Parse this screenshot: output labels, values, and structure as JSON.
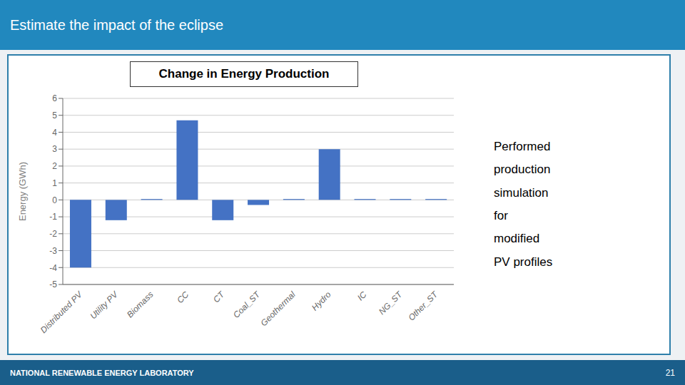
{
  "chart_data": {
    "type": "bar",
    "title": "Change in Energy Production",
    "categories": [
      "Distributed PV",
      "Utility PV",
      "Biomass",
      "CC",
      "CT",
      "Coal_ST",
      "Geothermal",
      "Hydro",
      "IC",
      "NG_ST",
      "Other_ST"
    ],
    "values": [
      -4.0,
      -1.2,
      0.05,
      4.7,
      -1.2,
      -0.3,
      0.05,
      3.0,
      0.05,
      0.05,
      0.05
    ],
    "color": "#4472C4",
    "ylabel": "Energy (GWh)",
    "ylim": [
      -5,
      6
    ],
    "yticks": [
      -5,
      -4,
      -3,
      -2,
      -1,
      0,
      1,
      2,
      3,
      4,
      5,
      6
    ],
    "grid": true,
    "annotations": [
      "Estimate the impact of the eclipse",
      "Performed\nproduction\nsimulation\nfor\nmodified\nPV profiles",
      "NATIONAL RENEWABLE ENERGY LABORATORY",
      "21"
    ]
  }
}
